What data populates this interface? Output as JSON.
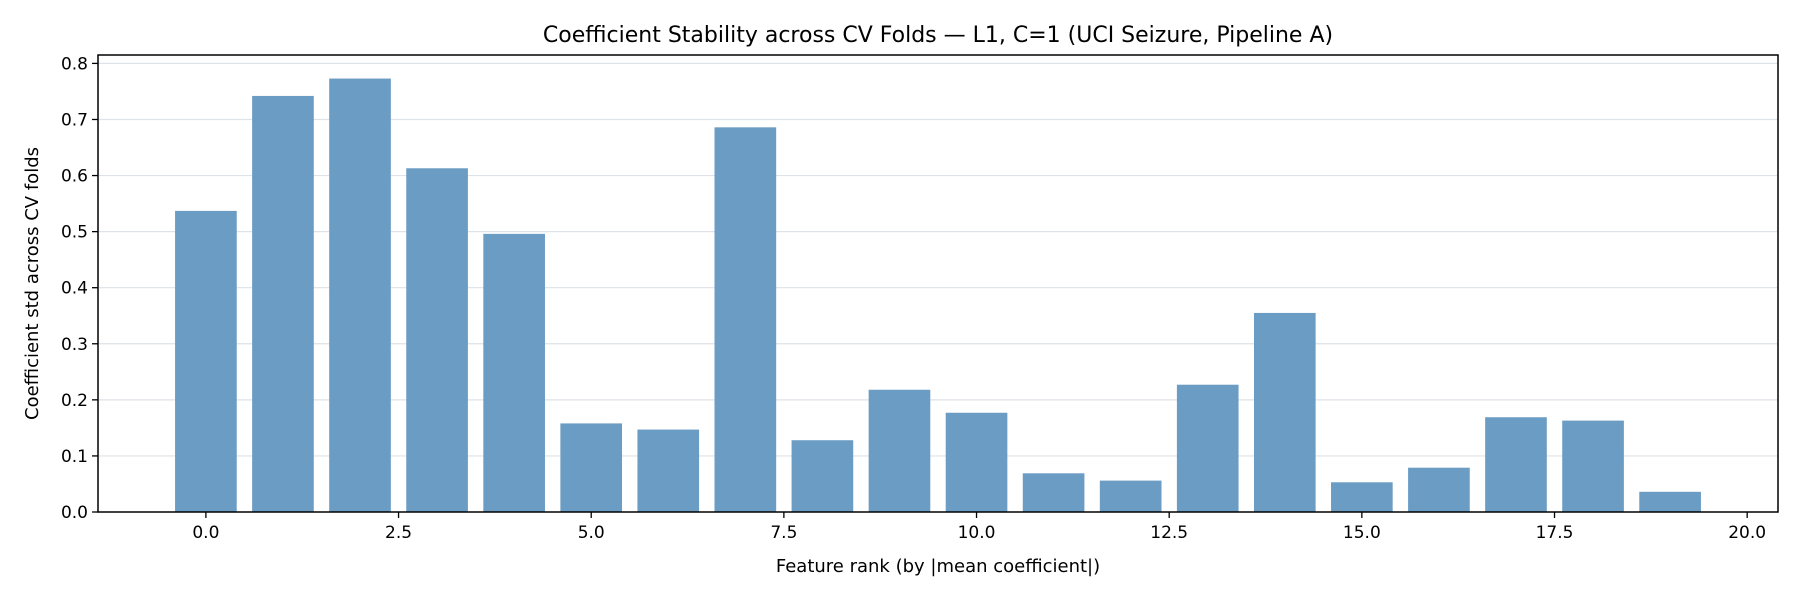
{
  "chart_data": {
    "type": "bar",
    "title": "Coefficient Stability across CV Folds — L1, C=1 (UCI Seizure, Pipeline A)",
    "xlabel": "Feature rank (by |mean coefficient|)",
    "ylabel": "Coefficient std across CV folds",
    "x": [
      0,
      1,
      2,
      3,
      4,
      5,
      6,
      7,
      8,
      9,
      10,
      11,
      12,
      13,
      14,
      15,
      16,
      17,
      18,
      19
    ],
    "values": [
      0.537,
      0.742,
      0.773,
      0.613,
      0.496,
      0.158,
      0.147,
      0.686,
      0.128,
      0.218,
      0.177,
      0.069,
      0.056,
      0.227,
      0.355,
      0.053,
      0.079,
      0.169,
      0.163,
      0.036
    ],
    "xlim": [
      -1.4,
      20.4
    ],
    "ylim": [
      0,
      0.815
    ],
    "xticks": [
      "0.0",
      "2.5",
      "5.0",
      "7.5",
      "10.0",
      "12.5",
      "15.0",
      "17.5",
      "20.0"
    ],
    "yticks": [
      "0.0",
      "0.1",
      "0.2",
      "0.3",
      "0.4",
      "0.5",
      "0.6",
      "0.7",
      "0.8"
    ],
    "grid": "horizontal",
    "bar_color": "#6a9cc4"
  }
}
